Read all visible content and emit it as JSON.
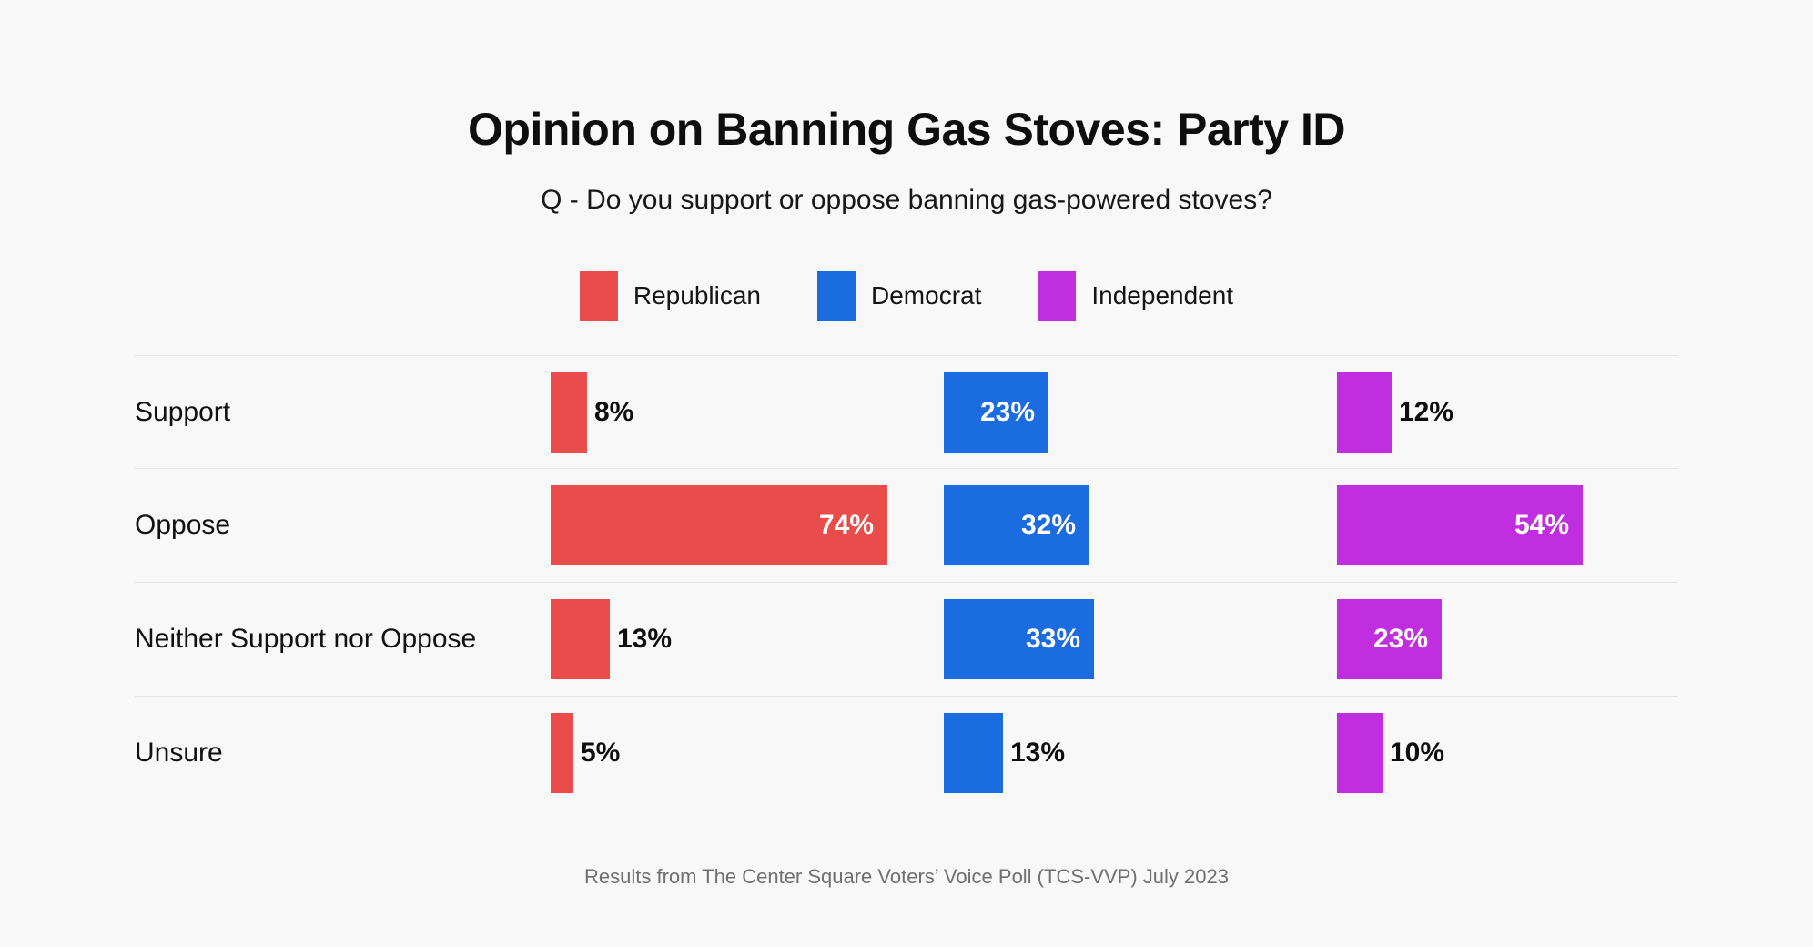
{
  "page": {
    "background": "#f8f8f8"
  },
  "chart_data": {
    "type": "bar",
    "orientation": "horizontal",
    "title": "Opinion on Banning Gas Stoves: Party ID",
    "subtitle": "Q - Do you support or oppose banning gas-powered stoves?",
    "categories": [
      "Support",
      "Oppose",
      "Neither Support nor Oppose",
      "Unsure"
    ],
    "series": [
      {
        "name": "Republican",
        "color": "#e94c4b",
        "values": [
          8,
          74,
          13,
          5
        ]
      },
      {
        "name": "Democrat",
        "color": "#1a6ce0",
        "values": [
          23,
          32,
          33,
          13
        ]
      },
      {
        "name": "Independent",
        "color": "#c02ee0",
        "values": [
          12,
          54,
          23,
          10
        ]
      }
    ],
    "value_suffix": "%",
    "xlim": [
      0,
      100
    ],
    "legend_position": "top",
    "grid": "row-separator-lines",
    "footnote": "Results from The Center Square Voters’ Voice Poll (TCS-VVP) July 2023"
  },
  "style": {
    "separator_color": "#e2e2e2",
    "inside_label_color": "#ffffff",
    "outside_label_color": "#0e0e0e",
    "inside_label_threshold_percent": 20
  }
}
